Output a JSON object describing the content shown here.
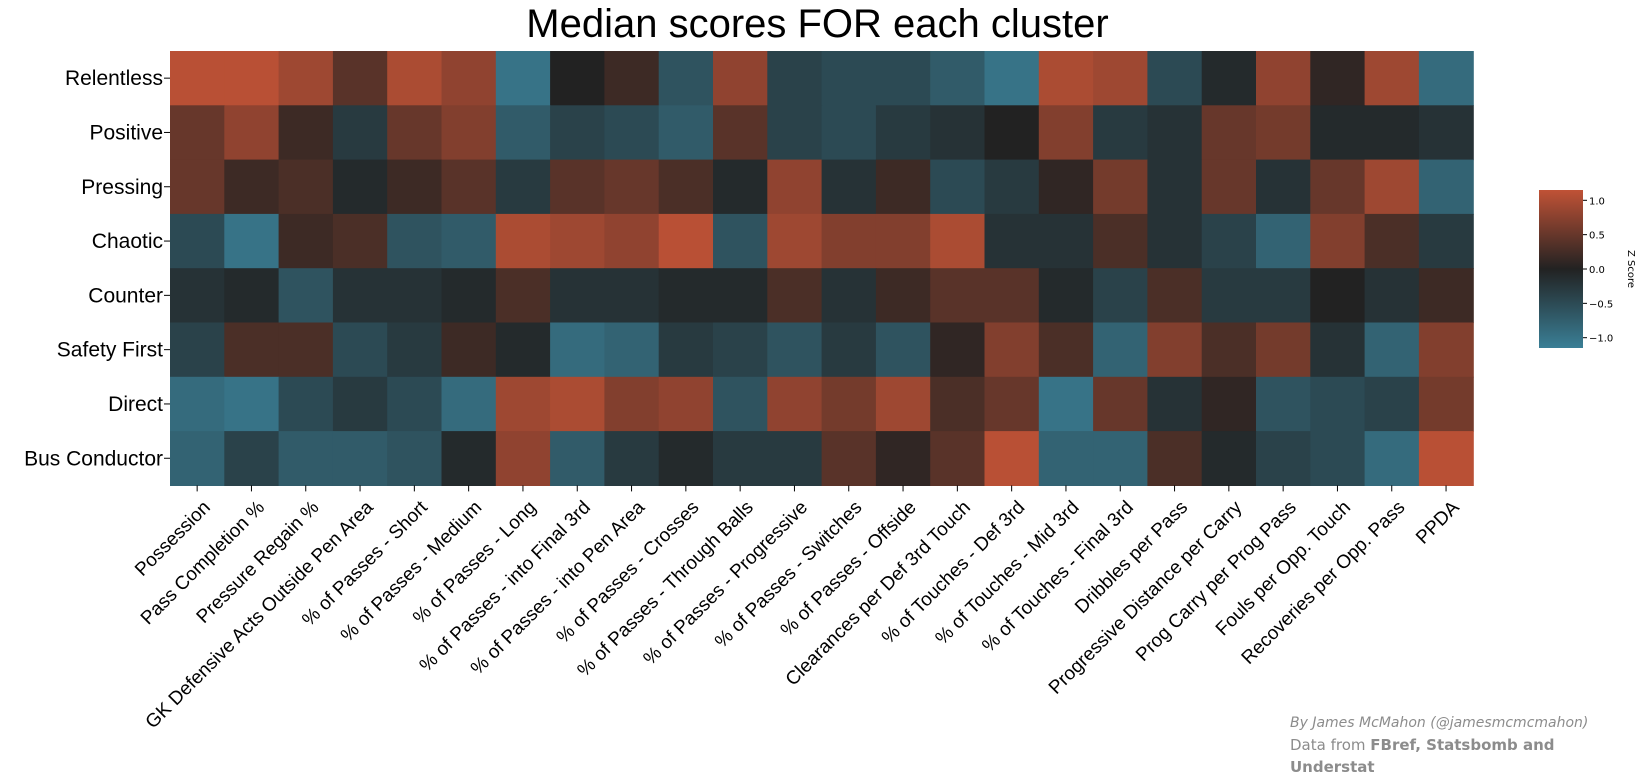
{
  "chart_data": {
    "type": "heatmap",
    "title": "Median scores FOR each cluster",
    "rows": [
      "Relentless",
      "Positive",
      "Pressing",
      "Chaotic",
      "Counter",
      "Safety First",
      "Direct",
      "Bus Conductor"
    ],
    "columns": [
      "Possession",
      "Pass Completion %",
      "Pressure Regain %",
      "GK Defensive Acts Outside Pen Area",
      "% of Passes - Short",
      "% of Passes - Medium",
      "% of Passes - Long",
      "% of Passes - into Final 3rd",
      "% of Passes - into Pen Area",
      "% of Passes - Crosses",
      "% of Passes - Through Balls",
      "% of Passes - Progressive",
      "% of Passes - Switches",
      "% of Passes - Offside",
      "Clearances per Def 3rd Touch",
      "% of Touches - Def 3rd",
      "% of Touches - Mid 3rd",
      "% of Touches - Final 3rd",
      "Dribbles per Pass",
      "Progressive Distance per Carry",
      "Prog Carry per Prog Pass",
      "Fouls per Opp. Touch",
      "Recoveries per Opp. Pass",
      "PPDA"
    ],
    "values": [
      [
        1.1,
        1.1,
        0.9,
        0.4,
        1.0,
        0.8,
        -1.0,
        0.0,
        0.2,
        -0.6,
        0.8,
        -0.4,
        -0.5,
        -0.5,
        -0.7,
        -1.0,
        1.0,
        0.9,
        -0.5,
        -0.1,
        0.8,
        0.1,
        0.9,
        -0.9
      ],
      [
        0.5,
        0.8,
        0.2,
        -0.3,
        0.5,
        0.7,
        -0.7,
        -0.4,
        -0.5,
        -0.7,
        0.4,
        -0.4,
        -0.5,
        -0.3,
        -0.2,
        0.0,
        0.7,
        -0.3,
        -0.2,
        0.5,
        0.6,
        -0.1,
        -0.1,
        -0.2
      ],
      [
        0.5,
        0.2,
        0.3,
        -0.1,
        0.2,
        0.4,
        -0.3,
        0.4,
        0.5,
        0.3,
        -0.1,
        0.8,
        -0.2,
        0.2,
        -0.5,
        -0.3,
        0.1,
        0.6,
        -0.2,
        0.5,
        -0.2,
        0.5,
        0.9,
        -0.8
      ],
      [
        -0.5,
        -1.0,
        0.2,
        0.3,
        -0.6,
        -0.7,
        1.0,
        0.9,
        0.8,
        1.1,
        -0.6,
        0.9,
        0.7,
        0.7,
        1.0,
        -0.2,
        -0.2,
        0.3,
        -0.2,
        -0.4,
        -0.8,
        0.7,
        0.3,
        -0.3
      ],
      [
        -0.2,
        -0.1,
        -0.6,
        -0.2,
        -0.2,
        -0.1,
        0.3,
        -0.2,
        -0.2,
        -0.1,
        -0.1,
        0.3,
        -0.2,
        0.2,
        0.4,
        0.4,
        -0.1,
        -0.4,
        0.3,
        -0.3,
        -0.3,
        0.0,
        -0.2,
        0.2
      ],
      [
        -0.4,
        0.3,
        0.3,
        -0.5,
        -0.3,
        0.2,
        -0.1,
        -0.9,
        -0.8,
        -0.3,
        -0.4,
        -0.6,
        -0.3,
        -0.6,
        0.1,
        0.7,
        0.3,
        -0.8,
        0.7,
        0.3,
        0.6,
        -0.2,
        -0.8,
        0.7
      ],
      [
        -0.9,
        -1.0,
        -0.5,
        -0.3,
        -0.5,
        -0.9,
        0.9,
        1.0,
        0.7,
        0.8,
        -0.6,
        0.8,
        0.6,
        0.9,
        0.3,
        0.5,
        -1.0,
        0.5,
        -0.2,
        0.1,
        -0.6,
        -0.5,
        -0.4,
        0.6
      ],
      [
        -0.8,
        -0.4,
        -0.7,
        -0.7,
        -0.6,
        -0.1,
        0.8,
        -0.7,
        -0.3,
        -0.1,
        -0.3,
        -0.3,
        0.4,
        0.1,
        0.4,
        1.1,
        -0.8,
        -0.8,
        0.3,
        -0.1,
        -0.4,
        -0.5,
        -0.9,
        1.1
      ]
    ],
    "colorbar": {
      "label": "Z Score",
      "ticks": [
        1.0,
        0.5,
        0.0,
        -0.5,
        -1.0
      ],
      "tick_labels": [
        "1.0",
        "0.5",
        "0.0",
        "−0.5",
        "−1.0"
      ],
      "range": [
        -1.15,
        1.15
      ]
    },
    "colors": {
      "low": "#3a7f96",
      "mid": "#222222",
      "high": "#c05236"
    }
  },
  "credit": {
    "author": "By James McMahon (@jamesmcmcmahon)",
    "source_prefix": "Data from ",
    "source_bold": "FBref, Statsbomb and Understat"
  }
}
